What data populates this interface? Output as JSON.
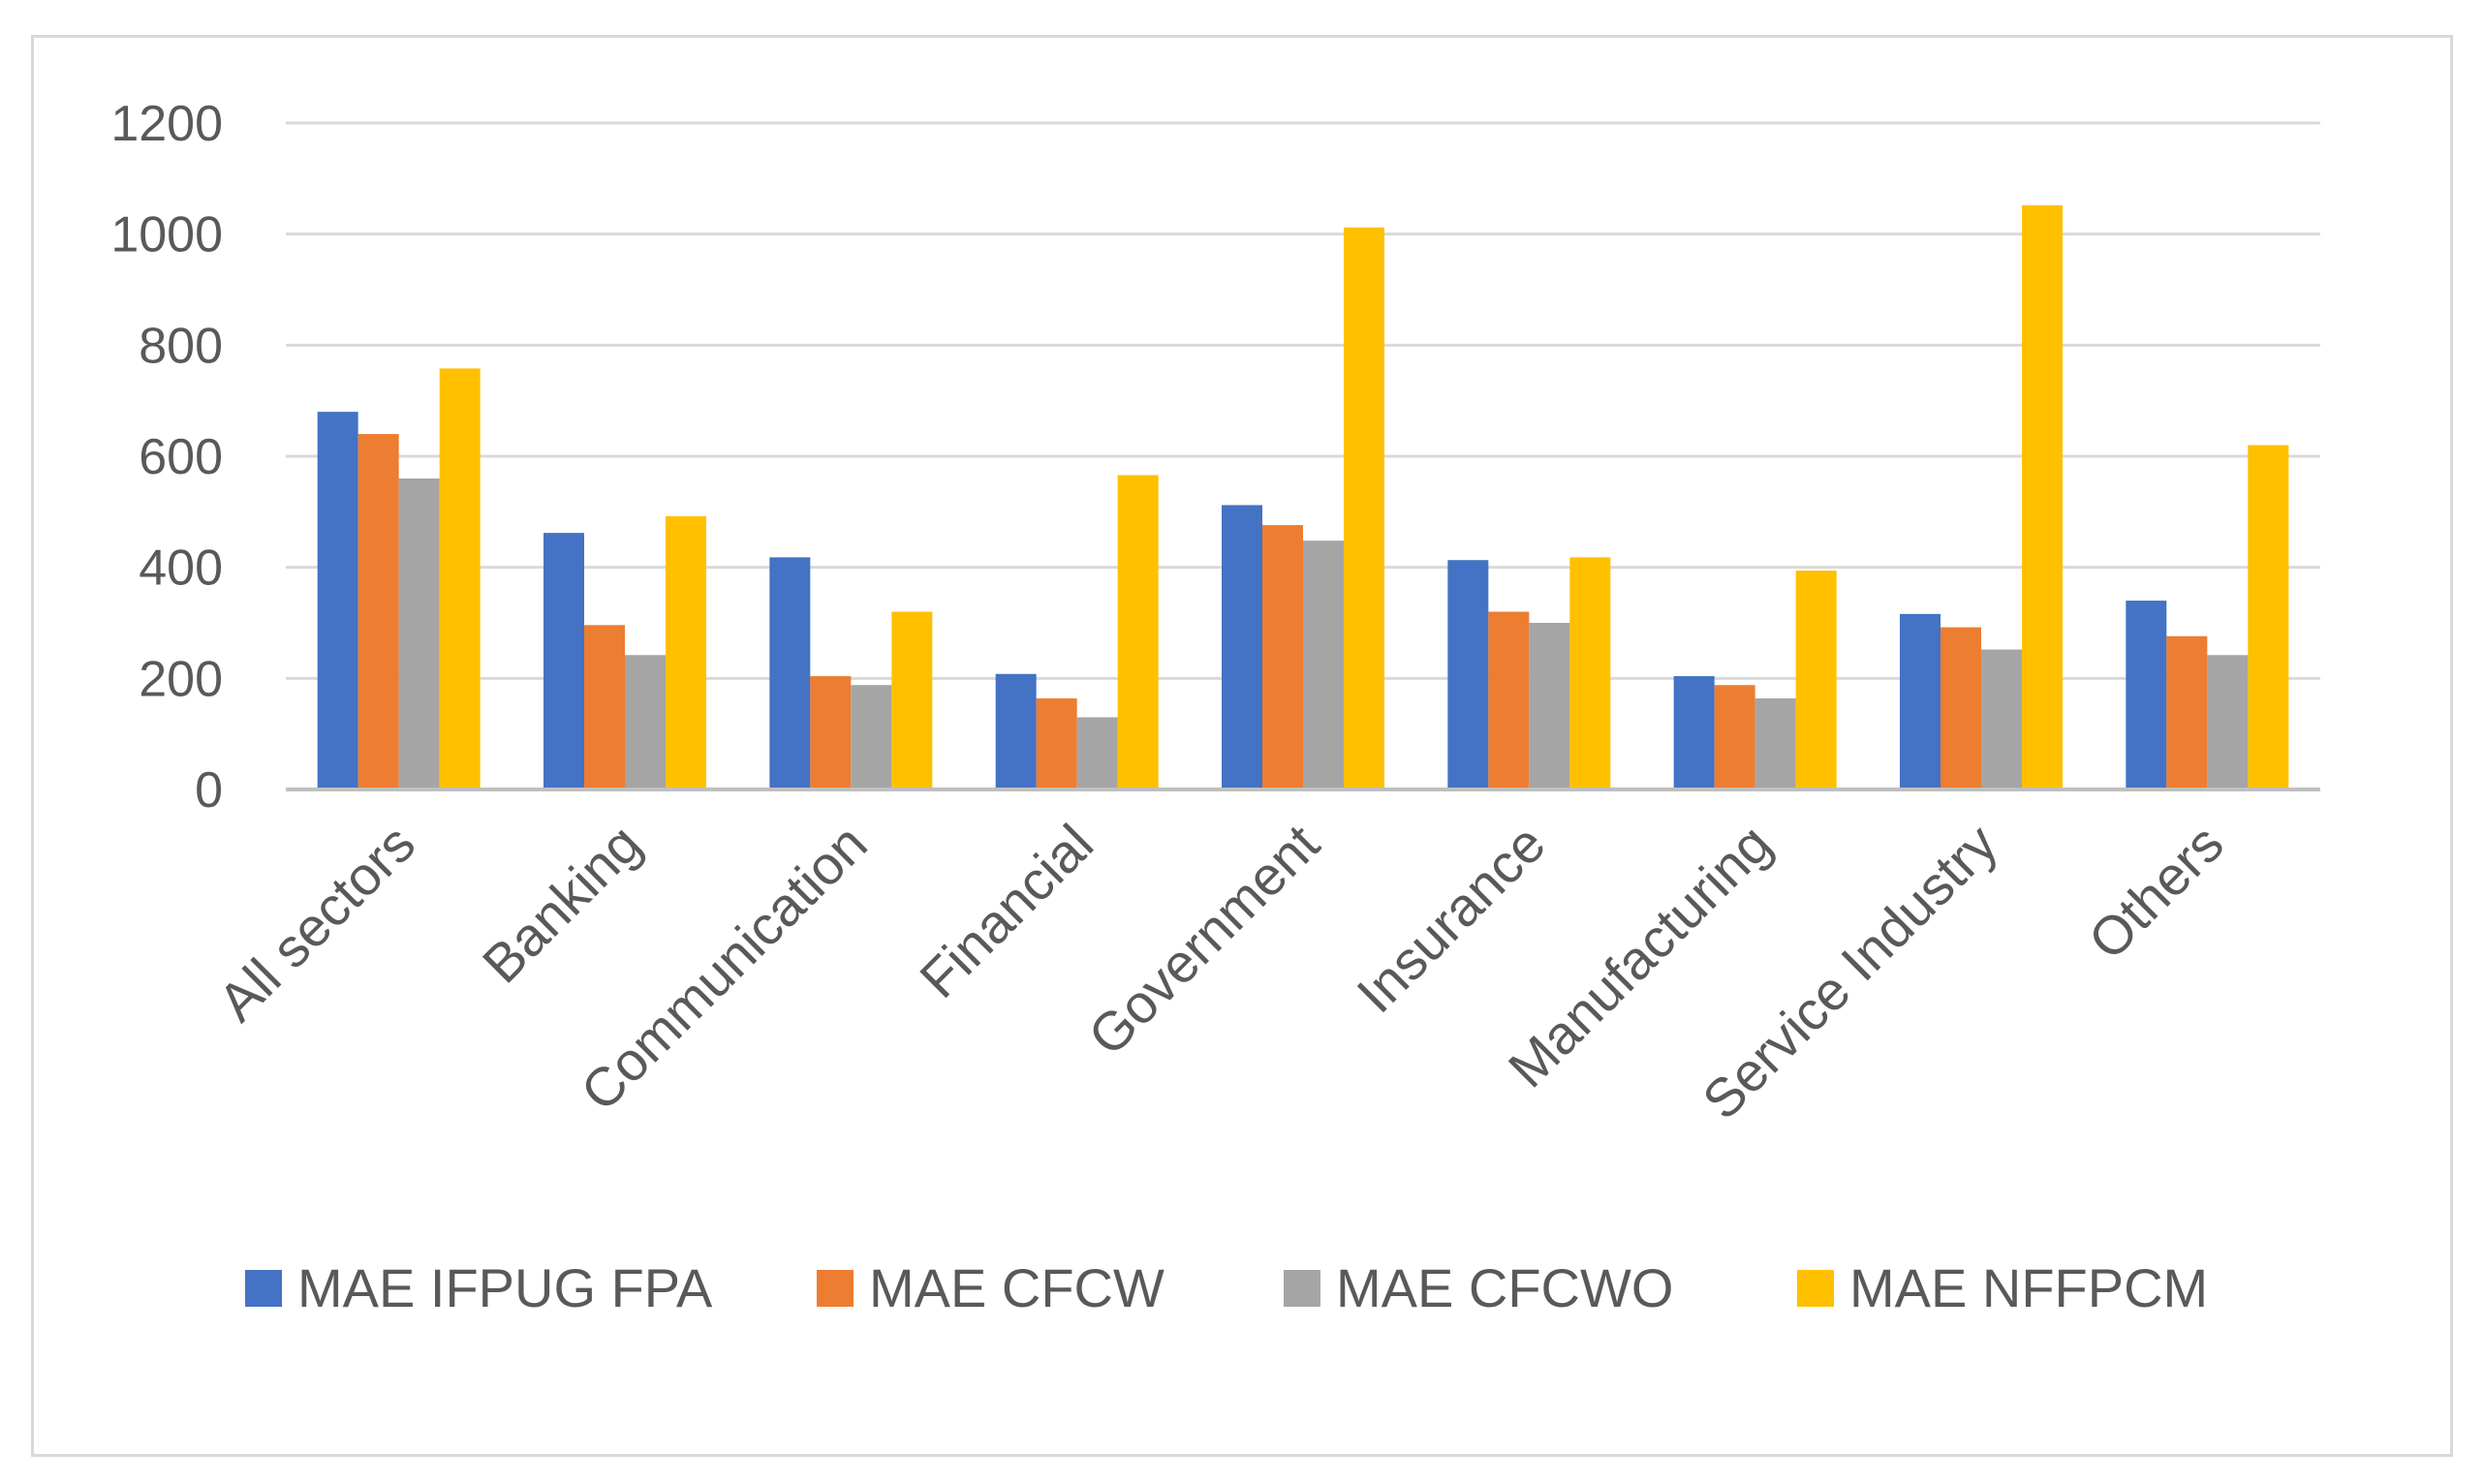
{
  "chart_data": {
    "type": "bar",
    "title": "",
    "xlabel": "",
    "ylabel": "",
    "ylim": [
      0,
      1200
    ],
    "yticks": [
      0,
      200,
      400,
      600,
      800,
      1000,
      1200
    ],
    "grid": true,
    "legend_position": "bottom",
    "categories": [
      "All sectors",
      "Banking",
      "Communication",
      "Financial",
      "Government",
      "Insurance",
      "Manufacturing",
      "Service Industry",
      "Others"
    ],
    "series": [
      {
        "name": "MAE IFPUG FPA",
        "color": "#4472c4",
        "values": [
          680,
          462,
          418,
          208,
          512,
          413,
          204,
          316,
          340
        ]
      },
      {
        "name": "MAE CFCW",
        "color": "#ed7d31",
        "values": [
          640,
          296,
          204,
          164,
          476,
          320,
          188,
          292,
          276
        ]
      },
      {
        "name": "MAE CFCWO",
        "color": "#a5a5a5",
        "values": [
          560,
          242,
          188,
          130,
          448,
          300,
          164,
          252,
          242
        ]
      },
      {
        "name": "MAE NFFPCM",
        "color": "#ffc000",
        "values": [
          758,
          492,
          320,
          566,
          1012,
          418,
          394,
          1052,
          620
        ]
      }
    ]
  }
}
